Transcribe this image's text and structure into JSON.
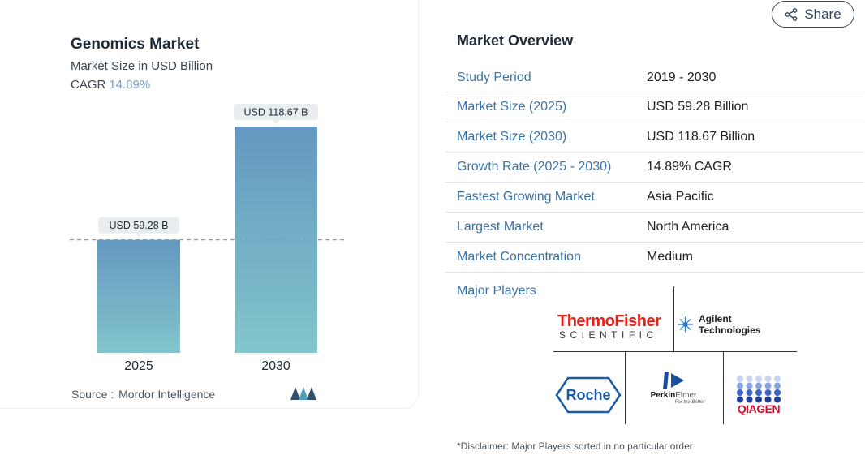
{
  "share": {
    "label": "Share",
    "icon": "share-icon"
  },
  "chart_data": {
    "type": "bar",
    "title": "Genomics Market",
    "subtitle": "Market Size in USD Billion",
    "cagr_label": "CAGR",
    "cagr_value": "14.89%",
    "categories": [
      "2025",
      "2030"
    ],
    "values": [
      59.28,
      118.67
    ],
    "data_labels": [
      "USD 59.28 B",
      "USD 118.67 B"
    ],
    "ylim": [
      0,
      118.67
    ],
    "reference_line": 59.28,
    "grid": false,
    "colors": {
      "bar_top": "#6498c0",
      "bar_bottom": "#82c5cb",
      "label_bg": "#e8edf0",
      "dash": "#7aa1c3"
    },
    "source_label": "Source :",
    "source_value": "Mordor Intelligence"
  },
  "overview": {
    "title": "Market Overview",
    "rows": [
      {
        "label": "Study Period",
        "value": "2019 - 2030"
      },
      {
        "label": "Market Size (2025)",
        "value": "USD 59.28 Billion"
      },
      {
        "label": "Market Size (2030)",
        "value": "USD 118.67 Billion"
      },
      {
        "label": "Growth Rate (2025 - 2030)",
        "value": "14.89% CAGR"
      },
      {
        "label": "Fastest Growing Market",
        "value": "Asia Pacific"
      },
      {
        "label": "Largest Market",
        "value": "North America"
      },
      {
        "label": "Market Concentration",
        "value": "Medium"
      }
    ]
  },
  "players": {
    "title": "Major Players",
    "thermo_top": "ThermoFisher",
    "thermo_bottom": "SCIENTIFIC",
    "agilent": "Agilent Technologies",
    "roche": "Roche",
    "perkin_a": "Perkin",
    "perkin_b": "Elmer",
    "perkin_tag": "For the Better",
    "qiagen": "QIAGEN"
  },
  "disclaimer": "*Disclaimer: Major Players sorted in no particular order"
}
